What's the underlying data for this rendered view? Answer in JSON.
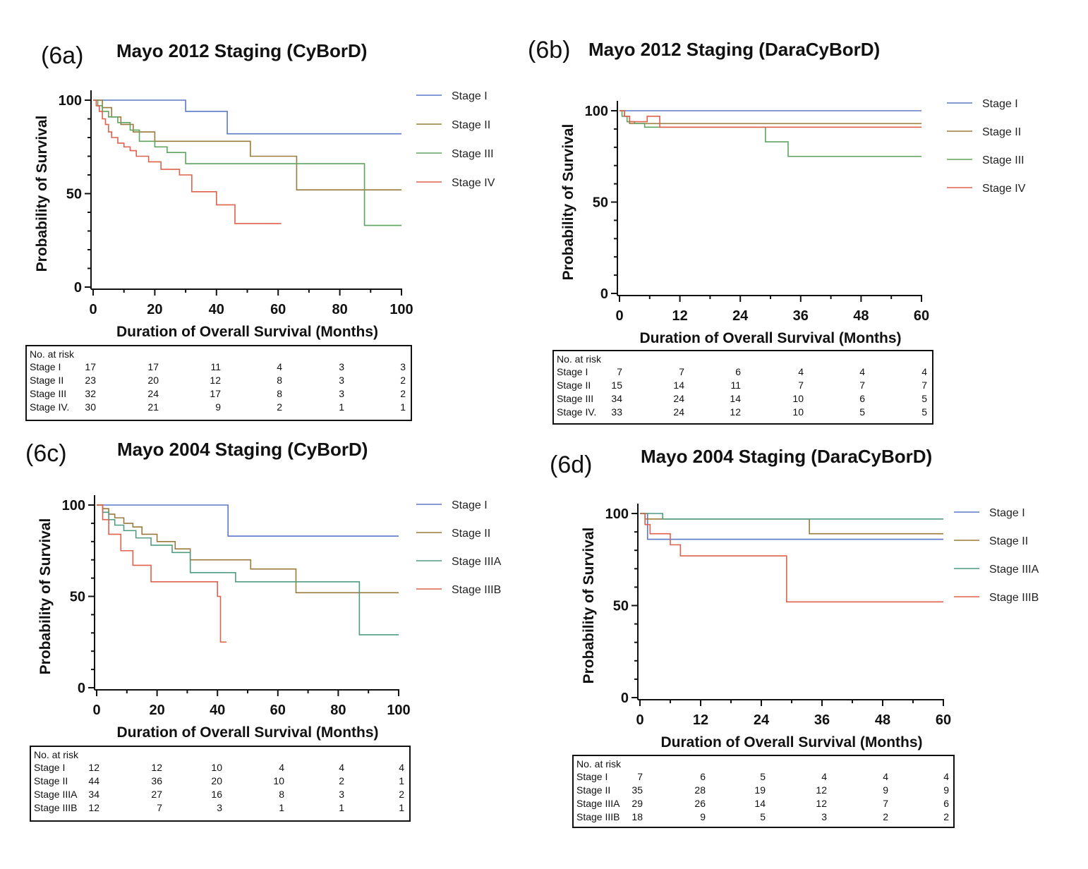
{
  "colors": {
    "Stage I": "#5b78c8",
    "Stage II": "#9a7a3c",
    "Stage III": "#5fa35f",
    "Stage IV": "#e0604c",
    "Stage IIIA": "#4f9c80",
    "Stage IIIB": "#e0604c"
  },
  "chart_data": [
    {
      "id": "6a",
      "panel_label": "(6a)",
      "type": "line",
      "step": true,
      "title": "Mayo 2012 Staging (CyBorD)",
      "xlabel": "Duration of Overall Survival (Months)",
      "ylabel": "Probability of Survival",
      "xlim": [
        0,
        100
      ],
      "ylim": [
        0,
        100
      ],
      "xticks": [
        0,
        20,
        40,
        60,
        80,
        100
      ],
      "yticks": [
        0,
        50,
        100
      ],
      "legend_position": "right",
      "series": [
        {
          "name": "Stage I",
          "x": [
            0,
            30,
            43.5,
            100
          ],
          "y": [
            100,
            94,
            82,
            82
          ]
        },
        {
          "name": "Stage II",
          "x": [
            0,
            3,
            6,
            9,
            13,
            20,
            51,
            66,
            100
          ],
          "y": [
            100,
            96,
            91,
            87,
            83,
            78,
            70,
            52,
            52
          ]
        },
        {
          "name": "Stage III",
          "x": [
            0,
            1.5,
            3,
            5,
            8,
            12,
            15,
            20,
            24,
            30,
            88,
            100
          ],
          "y": [
            100,
            97,
            94,
            91,
            88,
            84,
            78,
            75,
            72,
            66,
            33,
            33
          ]
        },
        {
          "name": "Stage IV",
          "x": [
            0,
            1,
            2,
            3,
            4,
            5,
            6,
            8,
            10,
            12,
            14,
            18,
            22,
            28,
            32,
            40,
            46,
            61
          ],
          "y": [
            100,
            97,
            94,
            90,
            87,
            83,
            80,
            77,
            75,
            73,
            70,
            67,
            63,
            60,
            51,
            44,
            34,
            34
          ]
        }
      ],
      "risk_table": {
        "header": "No. at risk",
        "rows": [
          {
            "label": "Stage I",
            "values": [
              "17",
              "17",
              "11",
              "4",
              "3",
              "3"
            ]
          },
          {
            "label": "Stage II",
            "values": [
              "23",
              "20",
              "12",
              "8",
              "3",
              "2"
            ]
          },
          {
            "label": "Stage III",
            "values": [
              "32",
              "24",
              "17",
              "8",
              "3",
              "2"
            ]
          },
          {
            "label": "Stage IV.",
            "values": [
              "30",
              "21",
              "9",
              "2",
              "1",
              "1"
            ]
          }
        ]
      }
    },
    {
      "id": "6b",
      "panel_label": "(6b)",
      "type": "line",
      "step": true,
      "title": "Mayo 2012 Staging (DaraCyBorD)",
      "xlabel": "Duration of Overall Survival (Months)",
      "ylabel": "Probability of Survival",
      "xlim": [
        0,
        60
      ],
      "ylim": [
        0,
        100
      ],
      "xticks": [
        0,
        12,
        24,
        36,
        48,
        60
      ],
      "yticks": [
        0,
        50,
        100
      ],
      "legend_position": "right",
      "series": [
        {
          "name": "Stage I",
          "x": [
            0,
            60
          ],
          "y": [
            100,
            100
          ]
        },
        {
          "name": "Stage II",
          "x": [
            0,
            1,
            2,
            60
          ],
          "y": [
            100,
            97,
            93,
            93
          ]
        },
        {
          "name": "Stage III",
          "x": [
            0,
            0.5,
            1.5,
            3,
            5,
            29,
            33.5,
            60
          ],
          "y": [
            100,
            97,
            94,
            93,
            91,
            83,
            75,
            75
          ]
        },
        {
          "name": "Stage IV",
          "x": [
            0,
            1,
            2,
            5.5,
            8,
            60
          ],
          "y": [
            100,
            97,
            94,
            97,
            91,
            91
          ]
        }
      ],
      "risk_table": {
        "header": "No. at risk",
        "rows": [
          {
            "label": "Stage I",
            "values": [
              "7",
              "7",
              "6",
              "4",
              "4",
              "4"
            ]
          },
          {
            "label": "Stage II",
            "values": [
              "15",
              "14",
              "11",
              "7",
              "7",
              "7"
            ]
          },
          {
            "label": "Stage III",
            "values": [
              "34",
              "24",
              "14",
              "10",
              "6",
              "5"
            ]
          },
          {
            "label": "Stage IV.",
            "values": [
              "33",
              "24",
              "12",
              "10",
              "5",
              "5"
            ]
          }
        ]
      }
    },
    {
      "id": "6c",
      "panel_label": "(6c)",
      "type": "line",
      "step": true,
      "title": "Mayo 2004 Staging (CyBorD)",
      "xlabel": "Duration of Overall Survival (Months)",
      "ylabel": "Probability of Survival",
      "xlim": [
        0,
        100
      ],
      "ylim": [
        0,
        100
      ],
      "xticks": [
        0,
        20,
        40,
        60,
        80,
        100
      ],
      "yticks": [
        0,
        50,
        100
      ],
      "legend_position": "right",
      "series": [
        {
          "name": "Stage I",
          "x": [
            0,
            43.5,
            100
          ],
          "y": [
            100,
            83,
            83
          ]
        },
        {
          "name": "Stage II",
          "x": [
            0,
            2,
            4,
            6,
            9,
            12,
            15,
            20,
            26,
            31,
            51,
            66,
            100
          ],
          "y": [
            100,
            98,
            95,
            93,
            90,
            88,
            84,
            80,
            76,
            70,
            65,
            52,
            52
          ]
        },
        {
          "name": "Stage IIIA",
          "x": [
            0,
            2,
            4,
            6,
            9,
            13,
            18,
            25,
            31,
            46,
            87,
            100
          ],
          "y": [
            100,
            96,
            92,
            89,
            86,
            82,
            78,
            74,
            63,
            58,
            29,
            29
          ]
        },
        {
          "name": "Stage IIIB",
          "x": [
            0,
            2,
            4,
            8,
            12,
            18,
            40,
            41,
            43
          ],
          "y": [
            100,
            92,
            84,
            75,
            67,
            58,
            50,
            25,
            25
          ]
        }
      ],
      "risk_table": {
        "header": "No. at risk",
        "rows": [
          {
            "label": "Stage I",
            "values": [
              "12",
              "12",
              "10",
              "4",
              "4",
              "4"
            ]
          },
          {
            "label": "Stage II",
            "values": [
              "44",
              "36",
              "20",
              "10",
              "2",
              "1"
            ]
          },
          {
            "label": "Stage IIIA",
            "values": [
              "34",
              "27",
              "16",
              "8",
              "3",
              "2"
            ]
          },
          {
            "label": "Stage IIIB",
            "values": [
              "12",
              "7",
              "3",
              "1",
              "1",
              "1"
            ]
          }
        ]
      }
    },
    {
      "id": "6d",
      "panel_label": "(6d)",
      "type": "line",
      "step": true,
      "title": "Mayo 2004 Staging (DaraCyBorD)",
      "xlabel": "Duration of Overall Survival (Months)",
      "ylabel": "Probability of Survival",
      "xlim": [
        0,
        60
      ],
      "ylim": [
        0,
        100
      ],
      "xticks": [
        0,
        12,
        24,
        36,
        48,
        60
      ],
      "yticks": [
        0,
        50,
        100
      ],
      "legend_position": "right",
      "series": [
        {
          "name": "Stage I",
          "x": [
            0,
            1.5,
            60
          ],
          "y": [
            100,
            86,
            86
          ]
        },
        {
          "name": "Stage II",
          "x": [
            0,
            1,
            4.5,
            33.5,
            60
          ],
          "y": [
            100,
            97,
            97,
            89,
            89
          ]
        },
        {
          "name": "Stage IIIA",
          "x": [
            0,
            1.5,
            4.5,
            60
          ],
          "y": [
            100,
            100,
            97,
            97
          ]
        },
        {
          "name": "Stage IIIB",
          "x": [
            0,
            1,
            2,
            3,
            6,
            8,
            29,
            60
          ],
          "y": [
            100,
            94,
            89,
            89,
            83,
            77,
            52,
            52
          ]
        }
      ],
      "risk_table": {
        "header": "No. at risk",
        "rows": [
          {
            "label": "Stage I",
            "values": [
              "7",
              "6",
              "5",
              "4",
              "4",
              "4"
            ]
          },
          {
            "label": "Stage II",
            "values": [
              "35",
              "28",
              "19",
              "12",
              "9",
              "9"
            ]
          },
          {
            "label": "Stage IIIA",
            "values": [
              "29",
              "26",
              "14",
              "12",
              "7",
              "6"
            ]
          },
          {
            "label": "Stage IIIB",
            "values": [
              "18",
              "9",
              "5",
              "3",
              "2",
              "2"
            ]
          }
        ]
      }
    }
  ]
}
